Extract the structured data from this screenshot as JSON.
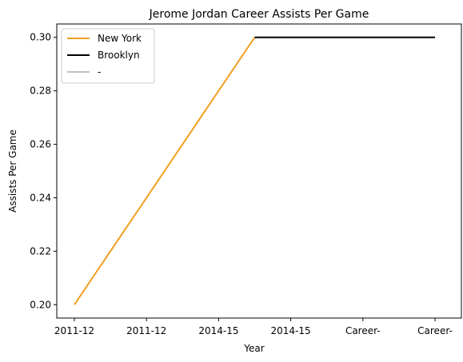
{
  "chart_data": {
    "type": "line",
    "title": "Jerome Jordan Career Assists Per Game",
    "xlabel": "Year",
    "ylabel": "Assists Per Game",
    "categories": [
      "2011-12",
      "2011-12",
      "2014-15",
      "2014-15",
      "Career-",
      "Career-"
    ],
    "ylim": [
      0.195,
      0.305
    ],
    "yticks": [
      0.2,
      0.22,
      0.24,
      0.26,
      0.28,
      0.3
    ],
    "ytick_labels": [
      "0.20",
      "0.22",
      "0.24",
      "0.26",
      "0.28",
      "0.30"
    ],
    "grid": false,
    "legend_position": "top-left",
    "series": [
      {
        "name": "New York",
        "color": "#f0a020",
        "x": [
          0,
          2.5
        ],
        "values": [
          0.2,
          0.3
        ]
      },
      {
        "name": "Brooklyn",
        "color": "#000000",
        "x": [
          2.5,
          5
        ],
        "values": [
          0.3,
          0.3
        ]
      },
      {
        "name": "-",
        "color": "#c0c0c0",
        "x": [],
        "values": []
      }
    ]
  }
}
